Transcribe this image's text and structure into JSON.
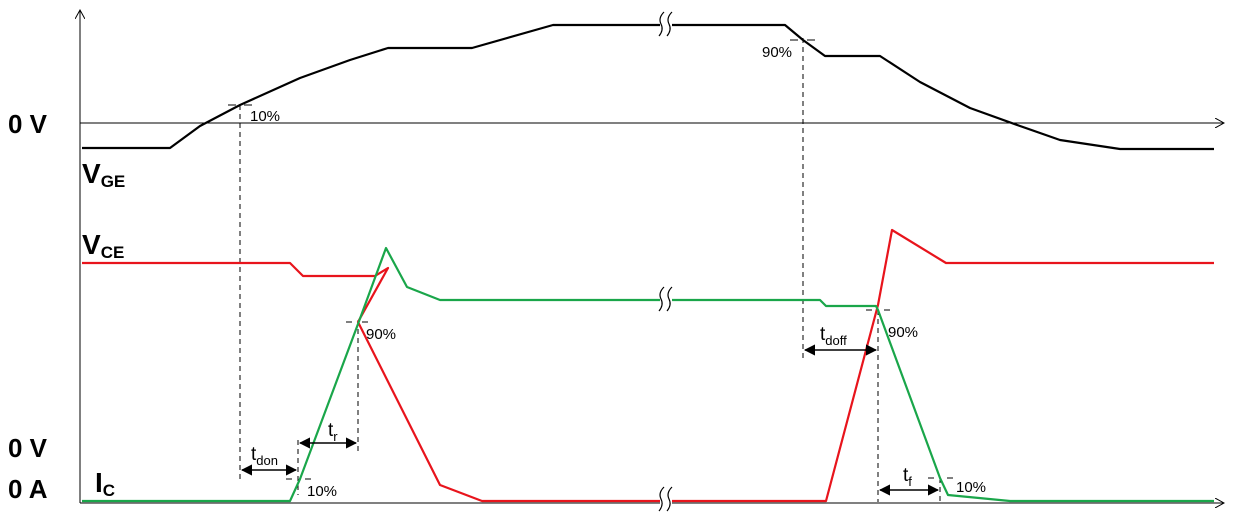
{
  "axes": {
    "vge_zero_label": "0 V",
    "vce_zero_label": "0 V",
    "ic_zero_label": "0 A"
  },
  "signals": {
    "vge": {
      "main": "V",
      "sub": "GE",
      "color": "#000000"
    },
    "vce": {
      "main": "V",
      "sub": "CE",
      "color": "#e8141c"
    },
    "ic": {
      "main": "I",
      "sub": "C",
      "color": "#1aa64a"
    }
  },
  "thresholds": {
    "vge_on": "10%",
    "vge_off": "90%",
    "ic_on_low": "10%",
    "ic_on_high": "90%",
    "ic_off_high": "90%",
    "ic_off_low": "10%"
  },
  "intervals": {
    "t_don": {
      "main": "t",
      "sub": "don"
    },
    "t_r": {
      "main": "t",
      "sub": "r"
    },
    "t_doff": {
      "main": "t",
      "sub": "doff"
    },
    "t_f": {
      "main": "t",
      "sub": "f"
    }
  }
}
